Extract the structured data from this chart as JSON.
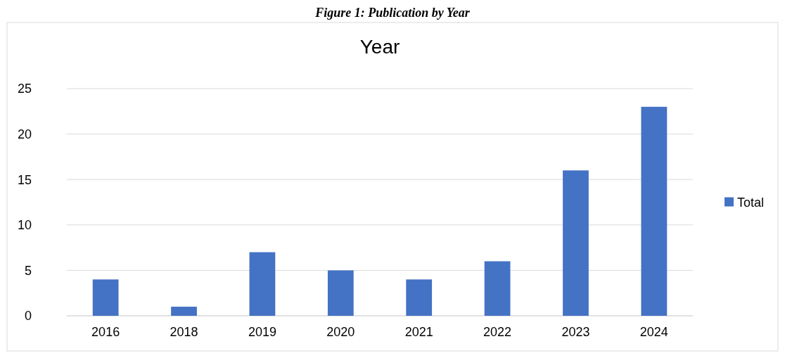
{
  "chart_data": {
    "type": "bar",
    "title": "Year",
    "annotations": [
      "Figure 1: Publication by Year"
    ],
    "categories": [
      "2016",
      "2018",
      "2019",
      "2020",
      "2021",
      "2022",
      "2023",
      "2024"
    ],
    "series": [
      {
        "name": "Total",
        "color": "#4472c4",
        "values": [
          4,
          1,
          7,
          5,
          4,
          6,
          16,
          23
        ]
      }
    ],
    "ylim": [
      0,
      25
    ],
    "yticks": [
      0,
      5,
      10,
      15,
      20,
      25
    ],
    "grid": "y",
    "legend": "right"
  }
}
